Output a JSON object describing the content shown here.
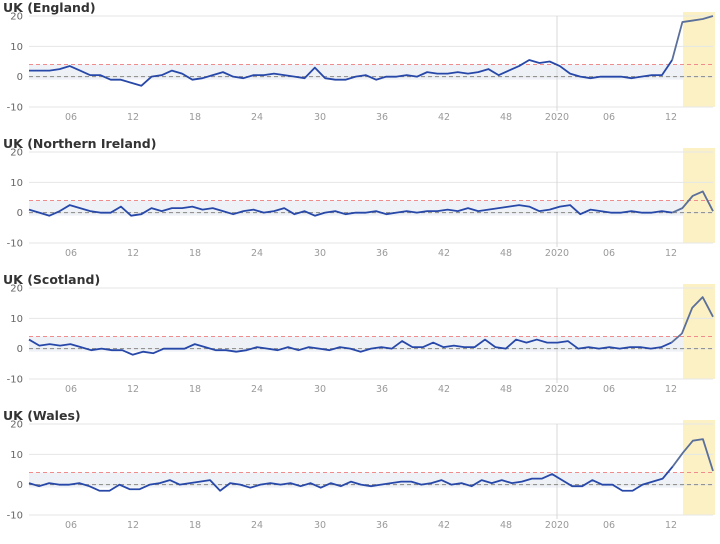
{
  "chart_data": [
    {
      "type": "line",
      "title": "UK (England)",
      "ylim": [
        -10,
        20
      ],
      "yticks": [
        -10,
        0,
        10,
        20
      ],
      "xtick_labels": [
        "06",
        "12",
        "18",
        "24",
        "30",
        "36",
        "42",
        "48",
        "2020",
        "06",
        "12"
      ],
      "threshold": 4,
      "values": [
        2,
        2,
        2,
        2.5,
        3.5,
        2,
        0.5,
        0.5,
        -1,
        -1,
        -2,
        -3,
        0,
        0.5,
        2,
        1,
        -1,
        -0.5,
        0.5,
        1.5,
        0,
        -0.5,
        0.5,
        0.5,
        1,
        0.5,
        0,
        -0.5,
        3,
        -0.5,
        -1,
        -1,
        0,
        0.5,
        -1,
        0,
        0,
        0.5,
        0,
        1.5,
        1,
        1,
        1.5,
        1,
        1.5,
        2.5,
        0.5,
        2,
        3.5,
        5.5,
        4.5,
        5,
        3.5,
        1,
        0,
        -0.5,
        0,
        0,
        0,
        -0.5,
        0,
        0.5,
        0.5,
        5.5,
        18,
        18.5,
        19,
        20
      ],
      "highlight_last": 4
    },
    {
      "type": "line",
      "title": "UK (Northern Ireland)",
      "ylim": [
        -10,
        20
      ],
      "yticks": [
        -10,
        0,
        10,
        20
      ],
      "xtick_labels": [
        "06",
        "12",
        "18",
        "24",
        "30",
        "36",
        "42",
        "48",
        "2020",
        "06",
        "12"
      ],
      "threshold": 4,
      "values": [
        1,
        0,
        -1,
        0.5,
        2.5,
        1.5,
        0.5,
        0,
        0,
        2,
        -1,
        -0.5,
        1.5,
        0.5,
        1.5,
        1.5,
        2,
        1,
        1.5,
        0.5,
        -0.5,
        0.5,
        1,
        0,
        0.5,
        1.5,
        -0.5,
        0.5,
        -1,
        0,
        0.5,
        -0.5,
        0,
        0,
        0.5,
        -0.5,
        0,
        0.5,
        0,
        0.5,
        0.5,
        1,
        0.5,
        1.5,
        0.5,
        1,
        1.5,
        2,
        2.5,
        2,
        0.5,
        1,
        2,
        2.5,
        -0.5,
        1,
        0.5,
        0,
        0,
        0.5,
        0,
        0,
        0.5,
        0,
        1.5,
        5.5,
        7,
        0.5
      ],
      "highlight_last": 4
    },
    {
      "type": "line",
      "title": "UK (Scotland)",
      "ylim": [
        -10,
        20
      ],
      "yticks": [
        -10,
        0,
        10,
        20
      ],
      "xtick_labels": [
        "06",
        "12",
        "18",
        "24",
        "30",
        "36",
        "42",
        "48",
        "2020",
        "06",
        "12"
      ],
      "threshold": 4,
      "values": [
        3,
        1,
        1.5,
        1,
        1.5,
        0.5,
        -0.5,
        0,
        -0.5,
        -0.5,
        -2,
        -1,
        -1.5,
        0,
        0,
        0,
        1.5,
        0.5,
        -0.5,
        -0.5,
        -1,
        -0.5,
        0.5,
        0,
        -0.5,
        0.5,
        -0.5,
        0.5,
        0,
        -0.5,
        0.5,
        0,
        -1,
        0,
        0.5,
        0,
        2.5,
        0.5,
        0.5,
        2,
        0.5,
        1,
        0.5,
        0.5,
        3,
        0.5,
        0,
        3,
        2,
        3,
        2,
        2,
        2.5,
        0,
        0.5,
        0,
        0.5,
        0,
        0.5,
        0.5,
        0,
        0.5,
        2,
        5,
        13.5,
        17,
        10.5
      ],
      "highlight_last": 4
    },
    {
      "type": "line",
      "title": "UK (Wales)",
      "ylim": [
        -10,
        20
      ],
      "yticks": [
        -10,
        0,
        10,
        20
      ],
      "xtick_labels": [
        "06",
        "12",
        "18",
        "24",
        "30",
        "36",
        "42",
        "48",
        "2020",
        "06",
        "12"
      ],
      "threshold": 4,
      "values": [
        0.5,
        -0.5,
        0.5,
        0,
        0,
        0.5,
        -0.5,
        -2,
        -2,
        0,
        -1.5,
        -1.5,
        0,
        0.5,
        1.5,
        0,
        0.5,
        1,
        1.5,
        -2,
        0.5,
        0,
        -1,
        0,
        0.5,
        0,
        0.5,
        -0.5,
        0.5,
        -1,
        0.5,
        -0.5,
        1,
        0,
        -0.5,
        0,
        0.5,
        1,
        1,
        0,
        0.5,
        1.5,
        0,
        0.5,
        -0.5,
        1.5,
        0.5,
        1.5,
        0.5,
        1,
        2,
        2,
        3.5,
        1.5,
        -0.5,
        -0.5,
        1.5,
        0,
        0,
        -2,
        -2,
        0,
        1,
        2,
        6,
        10.5,
        14.5,
        15,
        4.5
      ],
      "highlight_last": 4
    }
  ]
}
